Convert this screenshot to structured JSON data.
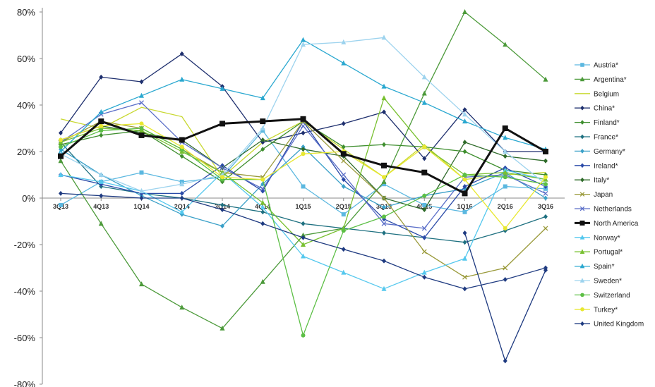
{
  "chart_data": {
    "type": "line",
    "title": "",
    "xlabel": "",
    "ylabel": "",
    "categories": [
      "3Q13",
      "4Q13",
      "1Q14",
      "2Q14",
      "3Q14",
      "4Q14",
      "1Q15",
      "2Q15",
      "3Q15",
      "4Q15",
      "1Q16",
      "2Q16",
      "3Q16"
    ],
    "ylim": [
      -80,
      80
    ],
    "yticks": [
      -80,
      -60,
      -40,
      -20,
      0,
      20,
      40,
      60,
      80
    ],
    "ytick_labels": [
      "-80%",
      "-60%",
      "-40%",
      "-20%",
      "0%",
      "20%",
      "40%",
      "60%",
      "80%"
    ],
    "grid": false,
    "legend_position": "right",
    "series": [
      {
        "name": "Austria*",
        "color": "#5cb8e0",
        "marker": "square",
        "values": [
          -3,
          7,
          11,
          7,
          9,
          29,
          5,
          -7,
          6,
          -3,
          -6,
          5,
          4
        ]
      },
      {
        "name": "Argentina*",
        "color": "#4c9a3a",
        "marker": "triangle",
        "values": [
          16,
          -11,
          -37,
          -47,
          -56,
          -36,
          -16,
          -13,
          7,
          45,
          80,
          66,
          51
        ]
      },
      {
        "name": "Belgium",
        "color": "#c8d830",
        "marker": "none",
        "values": [
          34,
          30,
          39,
          35,
          9,
          24,
          33,
          21,
          9,
          23,
          8,
          10,
          11
        ]
      },
      {
        "name": "China*",
        "color": "#1e2f6e",
        "marker": "diamond",
        "values": [
          28,
          52,
          50,
          62,
          48,
          24,
          28,
          32,
          37,
          17,
          38,
          20,
          20
        ]
      },
      {
        "name": "Finland*",
        "color": "#3e8e2e",
        "marker": "diamond",
        "values": [
          23,
          27,
          29,
          18,
          7,
          21,
          33,
          22,
          23,
          22,
          20,
          12,
          10
        ]
      },
      {
        "name": "France*",
        "color": "#1e7080",
        "marker": "diamond",
        "values": [
          24,
          5,
          2,
          0,
          -3,
          -6,
          -11,
          -13,
          -15,
          -17,
          -19,
          -14,
          -8
        ]
      },
      {
        "name": "Germany*",
        "color": "#3aa0c8",
        "marker": "diamond",
        "values": [
          21,
          10,
          1,
          -7,
          -12,
          6,
          22,
          5,
          -4,
          1,
          4,
          11,
          0
        ]
      },
      {
        "name": "Ireland*",
        "color": "#2a4aa8",
        "marker": "diamond",
        "values": [
          10,
          6,
          2,
          2,
          14,
          3,
          33,
          8,
          -9,
          -17,
          5,
          13,
          5
        ]
      },
      {
        "name": "Italy*",
        "color": "#2f6b2a",
        "marker": "diamond",
        "values": [
          25,
          31,
          28,
          25,
          13,
          25,
          21,
          18,
          0,
          -5,
          24,
          18,
          16
        ]
      },
      {
        "name": "Japan",
        "color": "#9a9a3a",
        "marker": "x",
        "values": [
          24,
          33,
          30,
          21,
          11,
          9,
          33,
          16,
          0,
          -23,
          -34,
          -30,
          -13
        ]
      },
      {
        "name": "Netherlands",
        "color": "#5a6ec8",
        "marker": "x",
        "values": [
          24,
          36,
          41,
          24,
          13,
          4,
          31,
          10,
          -11,
          -13,
          9,
          10,
          2
        ]
      },
      {
        "name": "North America",
        "color": "#111111",
        "marker": "square",
        "values": [
          18,
          33,
          27,
          25,
          32,
          33,
          34,
          19,
          14,
          11,
          2,
          30,
          20
        ]
      },
      {
        "name": "Norway*",
        "color": "#55c8ee",
        "marker": "triangle",
        "values": [
          10,
          7,
          3,
          -6,
          11,
          -4,
          -25,
          -32,
          -39,
          -32,
          -26,
          12,
          8
        ]
      },
      {
        "name": "Portugal*",
        "color": "#78c030",
        "marker": "triangle",
        "values": [
          24,
          30,
          29,
          20,
          11,
          -2,
          -20,
          -13,
          43,
          22,
          10,
          11,
          8
        ]
      },
      {
        "name": "Spain*",
        "color": "#2aa8d0",
        "marker": "triangle",
        "values": [
          20,
          37,
          44,
          51,
          47,
          43,
          68,
          58,
          48,
          41,
          33,
          26,
          21
        ]
      },
      {
        "name": "Sweden*",
        "color": "#9dd3ee",
        "marker": "triangle",
        "values": [
          19,
          10,
          3,
          6,
          10,
          30,
          66,
          67,
          69,
          52,
          36,
          20,
          6
        ]
      },
      {
        "name": "Switzerland",
        "color": "#5cbf45",
        "marker": "circle",
        "values": [
          22,
          29,
          30,
          21,
          8,
          8,
          -59,
          -14,
          -8,
          1,
          10,
          9,
          6
        ]
      },
      {
        "name": "Turkey*",
        "color": "#e8e830",
        "marker": "circle",
        "values": [
          25,
          31,
          32,
          22,
          9,
          8,
          19,
          20,
          9,
          22,
          8,
          -13,
          9
        ]
      },
      {
        "name": "United Kingdom",
        "color": "#1e3a80",
        "marker": "diamond",
        "values": [
          2,
          1,
          0,
          0,
          -5,
          -11,
          -17,
          -22,
          -27,
          -34,
          -39,
          -35,
          -30
        ]
      }
    ]
  },
  "extra_series": [
    {
      "name": "United Kingdom (dip)",
      "hidden_from_legend": true,
      "color": "#1e3a80",
      "values": [
        null,
        null,
        null,
        null,
        null,
        null,
        null,
        null,
        null,
        null,
        -15,
        -70,
        -31
      ]
    }
  ]
}
